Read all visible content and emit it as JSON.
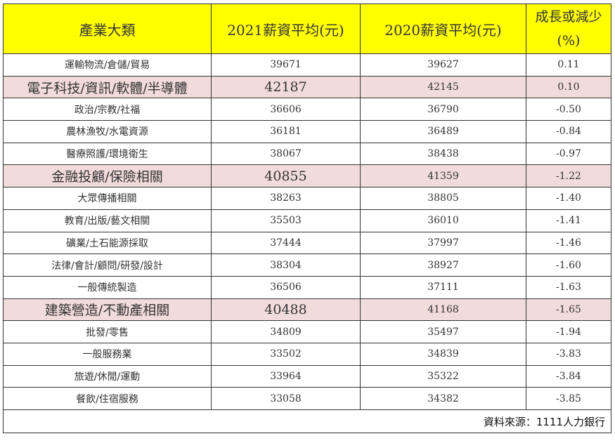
{
  "headers": {
    "category": "產業大類",
    "salary_2021": "2021薪資平均(元)",
    "salary_2020": "2020薪資平均(元)",
    "growth_line1": "成長或減少",
    "growth_line2": "(%)"
  },
  "rows": [
    {
      "category": "運輸物流/倉儲/貿易",
      "y2021": "39671",
      "y2020": "39627",
      "change": "0.11",
      "highlight": false
    },
    {
      "category": "電子科技/資訊/軟體/半導體",
      "y2021": "42187",
      "y2020": "42145",
      "change": "0.10",
      "highlight": true
    },
    {
      "category": "政治/宗教/社福",
      "y2021": "36606",
      "y2020": "36790",
      "change": "-0.50",
      "highlight": false
    },
    {
      "category": "農林漁牧/水電資源",
      "y2021": "36181",
      "y2020": "36489",
      "change": "-0.84",
      "highlight": false
    },
    {
      "category": "醫療照護/環境衛生",
      "y2021": "38067",
      "y2020": "38438",
      "change": "-0.97",
      "highlight": false
    },
    {
      "category": "金融投顧/保險相關",
      "y2021": "40855",
      "y2020": "41359",
      "change": "-1.22",
      "highlight": true
    },
    {
      "category": "大眾傳播相關",
      "y2021": "38263",
      "y2020": "38805",
      "change": "-1.40",
      "highlight": false
    },
    {
      "category": "教育/出版/藝文相關",
      "y2021": "35503",
      "y2020": "36010",
      "change": "-1.41",
      "highlight": false
    },
    {
      "category": "礦業/土石能源採取",
      "y2021": "37444",
      "y2020": "37997",
      "change": "-1.46",
      "highlight": false
    },
    {
      "category": "法律/會計/顧問/研發/設計",
      "y2021": "38304",
      "y2020": "38927",
      "change": "-1.60",
      "highlight": false
    },
    {
      "category": "一般傳統製造",
      "y2021": "36506",
      "y2020": "37111",
      "change": "-1.63",
      "highlight": false
    },
    {
      "category": "建築營造/不動產相關",
      "y2021": "40488",
      "y2020": "41168",
      "change": "-1.65",
      "highlight": true
    },
    {
      "category": "批發/零售",
      "y2021": "34809",
      "y2020": "35497",
      "change": "-1.94",
      "highlight": false
    },
    {
      "category": "一般服務業",
      "y2021": "33502",
      "y2020": "34839",
      "change": "-3.83",
      "highlight": false
    },
    {
      "category": "旅遊/休閒/運動",
      "y2021": "33964",
      "y2020": "35322",
      "change": "-3.84",
      "highlight": false
    },
    {
      "category": "餐飲/住宿服務",
      "y2021": "33058",
      "y2020": "34382",
      "change": "-3.85",
      "highlight": false
    }
  ],
  "source": "資料來源：1111人力銀行",
  "colors": {
    "header_bg": "#ffff00",
    "highlight_bg": "#f2dcdb",
    "border": "#333333"
  }
}
